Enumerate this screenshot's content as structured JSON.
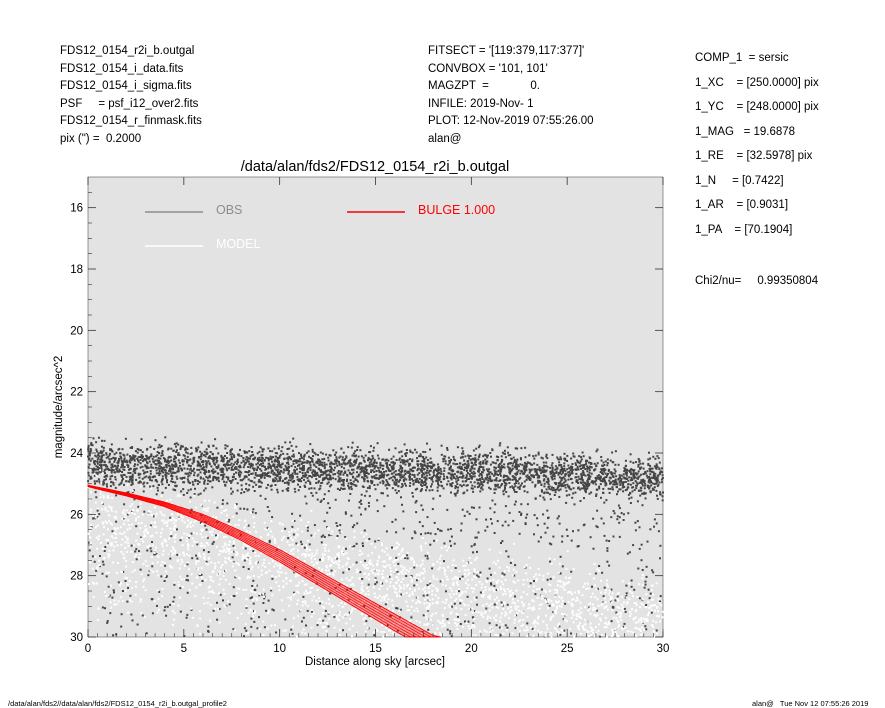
{
  "header_left": [
    "FDS12_0154_r2i_b.outgal",
    "FDS12_0154_i_data.fits",
    "FDS12_0154_i_sigma.fits",
    "PSF     = psf_i12_over2.fits",
    "FDS12_0154_r_finmask.fits",
    "pix (\") =  0.2000"
  ],
  "header_mid": [
    "FITSECT = '[119:379,117:377]'",
    "CONVBOX = '101, 101'",
    "MAGZPT  =             0.",
    "INFILE: 2019-Nov- 1",
    "PLOT: 12-Nov-2019 07:55:26.00",
    "alan@"
  ],
  "params": [
    "COMP_1  = sersic",
    "1_XC    = [250.0000] pix",
    "1_YC    = [248.0000] pix",
    "1_MAG   = 19.6878",
    "1_RE    = [32.5978] pix",
    "1_N     = [0.7422]",
    "1_AR    = [0.9031]",
    "1_PA    = [70.1904]"
  ],
  "chi2": "Chi2/nu=     0.99350804",
  "footer_left": "/data/alan/fds2//data/alan/fds2/FDS12_0154_r2i_b.outgal_profile2",
  "footer_right": "alan@   Tue Nov 12 07:55:26 2019",
  "colors": {
    "background": "#e3e3e3",
    "obs": "#444444",
    "model": "#ffffff",
    "bulge": "#ff0000",
    "legend_obs_text": "#8c8c8c"
  },
  "chart_data": {
    "type": "scatter",
    "title": "/data/alan/fds2/FDS12_0154_r2i_b.outgal",
    "xlabel": "Distance along sky [arcsec]",
    "ylabel": "magnitude/arcsec^2",
    "xlim": [
      0,
      30
    ],
    "ylim": [
      30,
      15
    ],
    "y_inverted": true,
    "xticks": [
      0,
      5,
      10,
      15,
      20,
      25,
      30
    ],
    "yticks": [
      16,
      18,
      20,
      22,
      24,
      26,
      28,
      30
    ],
    "legend": [
      {
        "label": "OBS",
        "style": "line",
        "color": "#8c8c8c"
      },
      {
        "label": "MODEL",
        "style": "line",
        "color": "#ffffff"
      },
      {
        "label": "BULGE  1.000",
        "style": "line",
        "color": "#ff0000"
      }
    ],
    "series": [
      {
        "name": "OBS",
        "kind": "scatter",
        "x": [
          0,
          2,
          4,
          6,
          8,
          10,
          12,
          14,
          16,
          18,
          20,
          22,
          24,
          26,
          28,
          30
        ],
        "y": [
          24.3,
          24.4,
          24.4,
          24.4,
          24.5,
          24.5,
          24.6,
          24.6,
          24.6,
          24.6,
          24.6,
          24.6,
          24.7,
          24.7,
          24.8,
          24.8
        ],
        "scatter_spread": 1.0,
        "sparse_y_range": [
          24.8,
          30
        ]
      },
      {
        "name": "MODEL",
        "kind": "scatter",
        "x": [
          0,
          2,
          4,
          6,
          8,
          10,
          12,
          14,
          16,
          18,
          20,
          22,
          24,
          26,
          28,
          30
        ],
        "y": [
          25.6,
          25.8,
          26.0,
          26.3,
          26.6,
          26.9,
          27.2,
          27.4,
          27.6,
          27.8,
          28.0,
          28.2,
          28.4,
          28.6,
          28.8,
          29.0
        ],
        "scatter_spread": 1.6
      },
      {
        "name": "BULGE  1.000",
        "kind": "band",
        "x": [
          0,
          2,
          4,
          6,
          8,
          10,
          12,
          14,
          16,
          18,
          18.4
        ],
        "y_upper": [
          25.05,
          25.3,
          25.6,
          26.0,
          26.55,
          27.15,
          27.85,
          28.55,
          29.25,
          29.95,
          30.0
        ],
        "y_lower": [
          25.1,
          25.4,
          25.75,
          26.25,
          26.85,
          27.55,
          28.3,
          29.05,
          29.8,
          30.5,
          30.6
        ]
      }
    ]
  }
}
